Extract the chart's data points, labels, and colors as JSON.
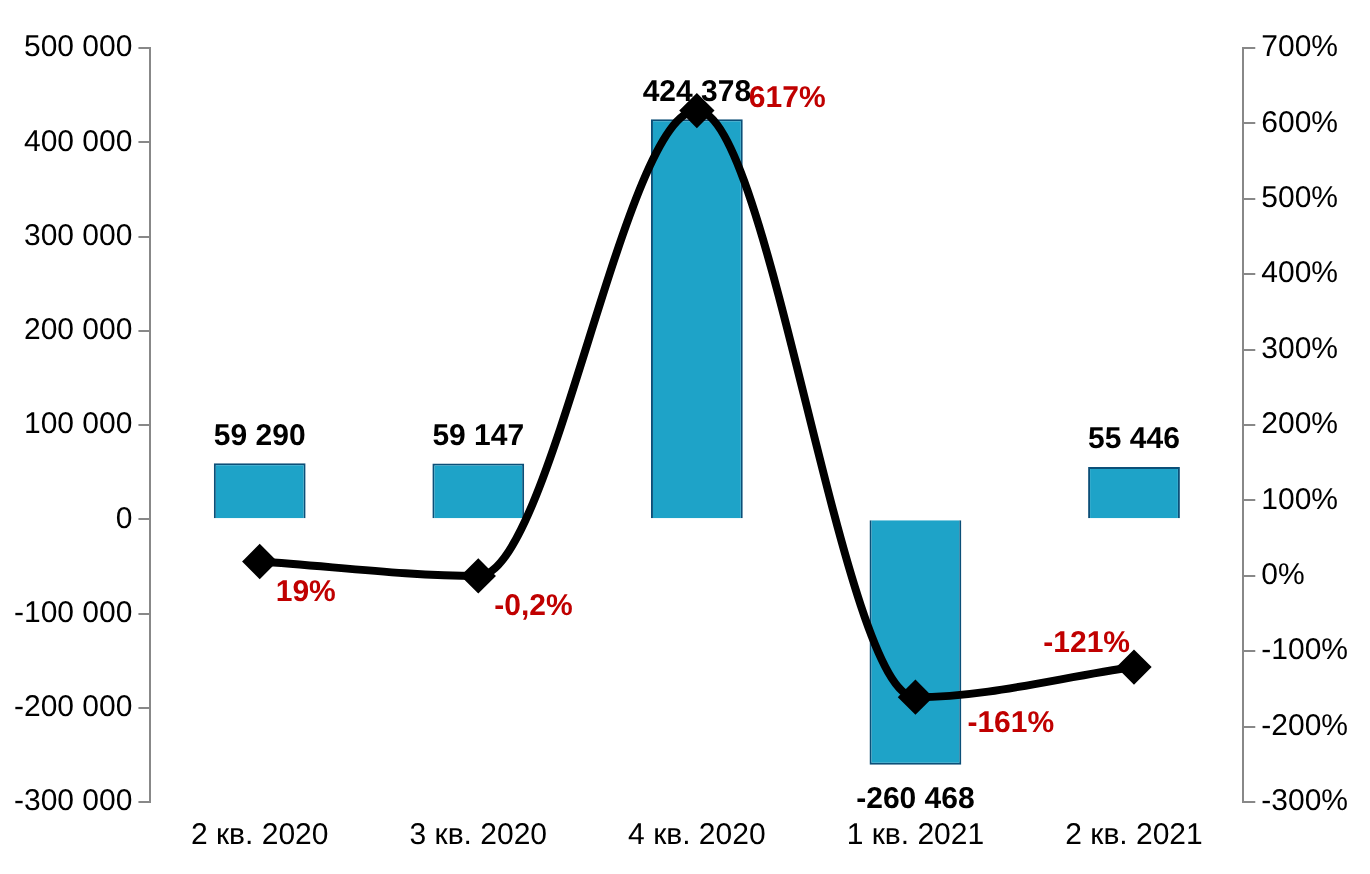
{
  "chart_data": {
    "type": "bar",
    "categories": [
      "2 кв. 2020",
      "3 кв. 2020",
      "4 кв. 2020",
      "1 кв. 2021",
      "2 кв. 2021"
    ],
    "series": [
      {
        "color": "#1ea3c8",
        "values": [
          59290,
          59147,
          424378,
          -260468,
          55446
        ],
        "value_labels": [
          "59 290",
          "59 147",
          "424 378",
          "-260 468",
          "55 446"
        ]
      },
      {
        "type": "line",
        "axis": "y2",
        "color": "#000000",
        "values": [
          19,
          -0.2,
          617,
          -161,
          -121
        ],
        "value_labels": [
          "19%",
          "-0,2%",
          "617%",
          "-161%",
          "-121%"
        ]
      }
    ],
    "ylim": [
      -300000,
      500000
    ],
    "yticks": [
      {
        "value": -300000,
        "label": "-300 000"
      },
      {
        "value": -200000,
        "label": "-200 000"
      },
      {
        "value": -100000,
        "label": "-100 000"
      },
      0,
      {
        "value": 100000,
        "label": "100 000"
      },
      {
        "value": 200000,
        "label": "200 000"
      },
      {
        "value": 300000,
        "label": "300 000"
      },
      {
        "value": 400000,
        "label": "400 000"
      },
      {
        "value": 500000,
        "label": "500 000"
      }
    ],
    "y2lim": [
      -300,
      700
    ],
    "y2ticks": [
      {
        "value": -300,
        "label": "-300%"
      },
      {
        "value": -200,
        "label": "-200%"
      },
      {
        "value": -100,
        "label": "-100%"
      },
      {
        "value": 0,
        "label": "0%"
      },
      {
        "value": 100,
        "label": "100%"
      },
      {
        "value": 200,
        "label": "200%"
      },
      {
        "value": 300,
        "label": "300%"
      },
      {
        "value": 400,
        "label": "400%"
      },
      {
        "value": 500,
        "label": "500%"
      },
      {
        "value": 600,
        "label": "600%"
      },
      {
        "value": 700,
        "label": "700%"
      }
    ],
    "grid": false,
    "legend": false,
    "marker": "diamond",
    "line_style": "solid"
  }
}
